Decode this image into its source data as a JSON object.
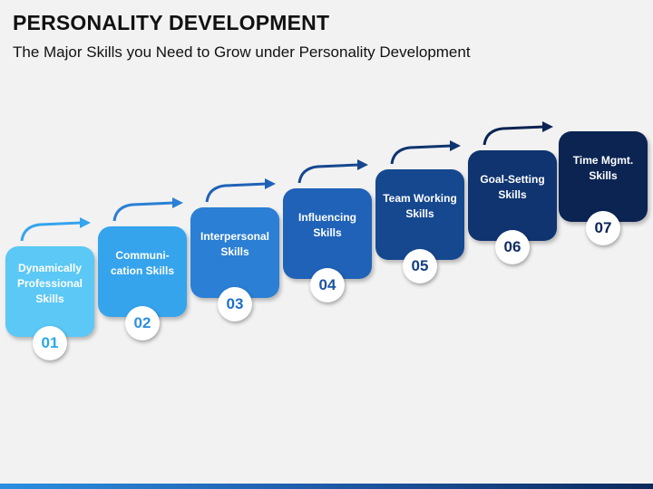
{
  "header": {
    "title": "PERSONALITY DEVELOPMENT",
    "subtitle": "The Major Skills you Need to Grow under Personality Development"
  },
  "steps": [
    {
      "number": "01",
      "label": "Dynamically\nProfessional\nSkills",
      "color": "#5bc8f5",
      "text_color": "#29a8e8"
    },
    {
      "number": "02",
      "label": "Communi-\ncation Skills",
      "color": "#35a4ec",
      "text_color": "#2f8fdd"
    },
    {
      "number": "03",
      "label": "Interpersonal\nSkills",
      "color": "#2b7fd4",
      "text_color": "#1f6fc4"
    },
    {
      "number": "04",
      "label": "Influencing\nSkills",
      "color": "#1f62b8",
      "text_color": "#1b55a3"
    },
    {
      "number": "05",
      "label": "Team Working\nSkills",
      "color": "#164890",
      "text_color": "#133f80"
    },
    {
      "number": "06",
      "label": "Goal-Setting\nSkills",
      "color": "#0f3470",
      "text_color": "#0e2f63"
    },
    {
      "number": "07",
      "label": "Time Mgmt.\nSkills",
      "color": "#0b2452",
      "text_color": "#0b2452"
    }
  ],
  "icons": {
    "step_arrow": "arrow-up-right-icon"
  }
}
